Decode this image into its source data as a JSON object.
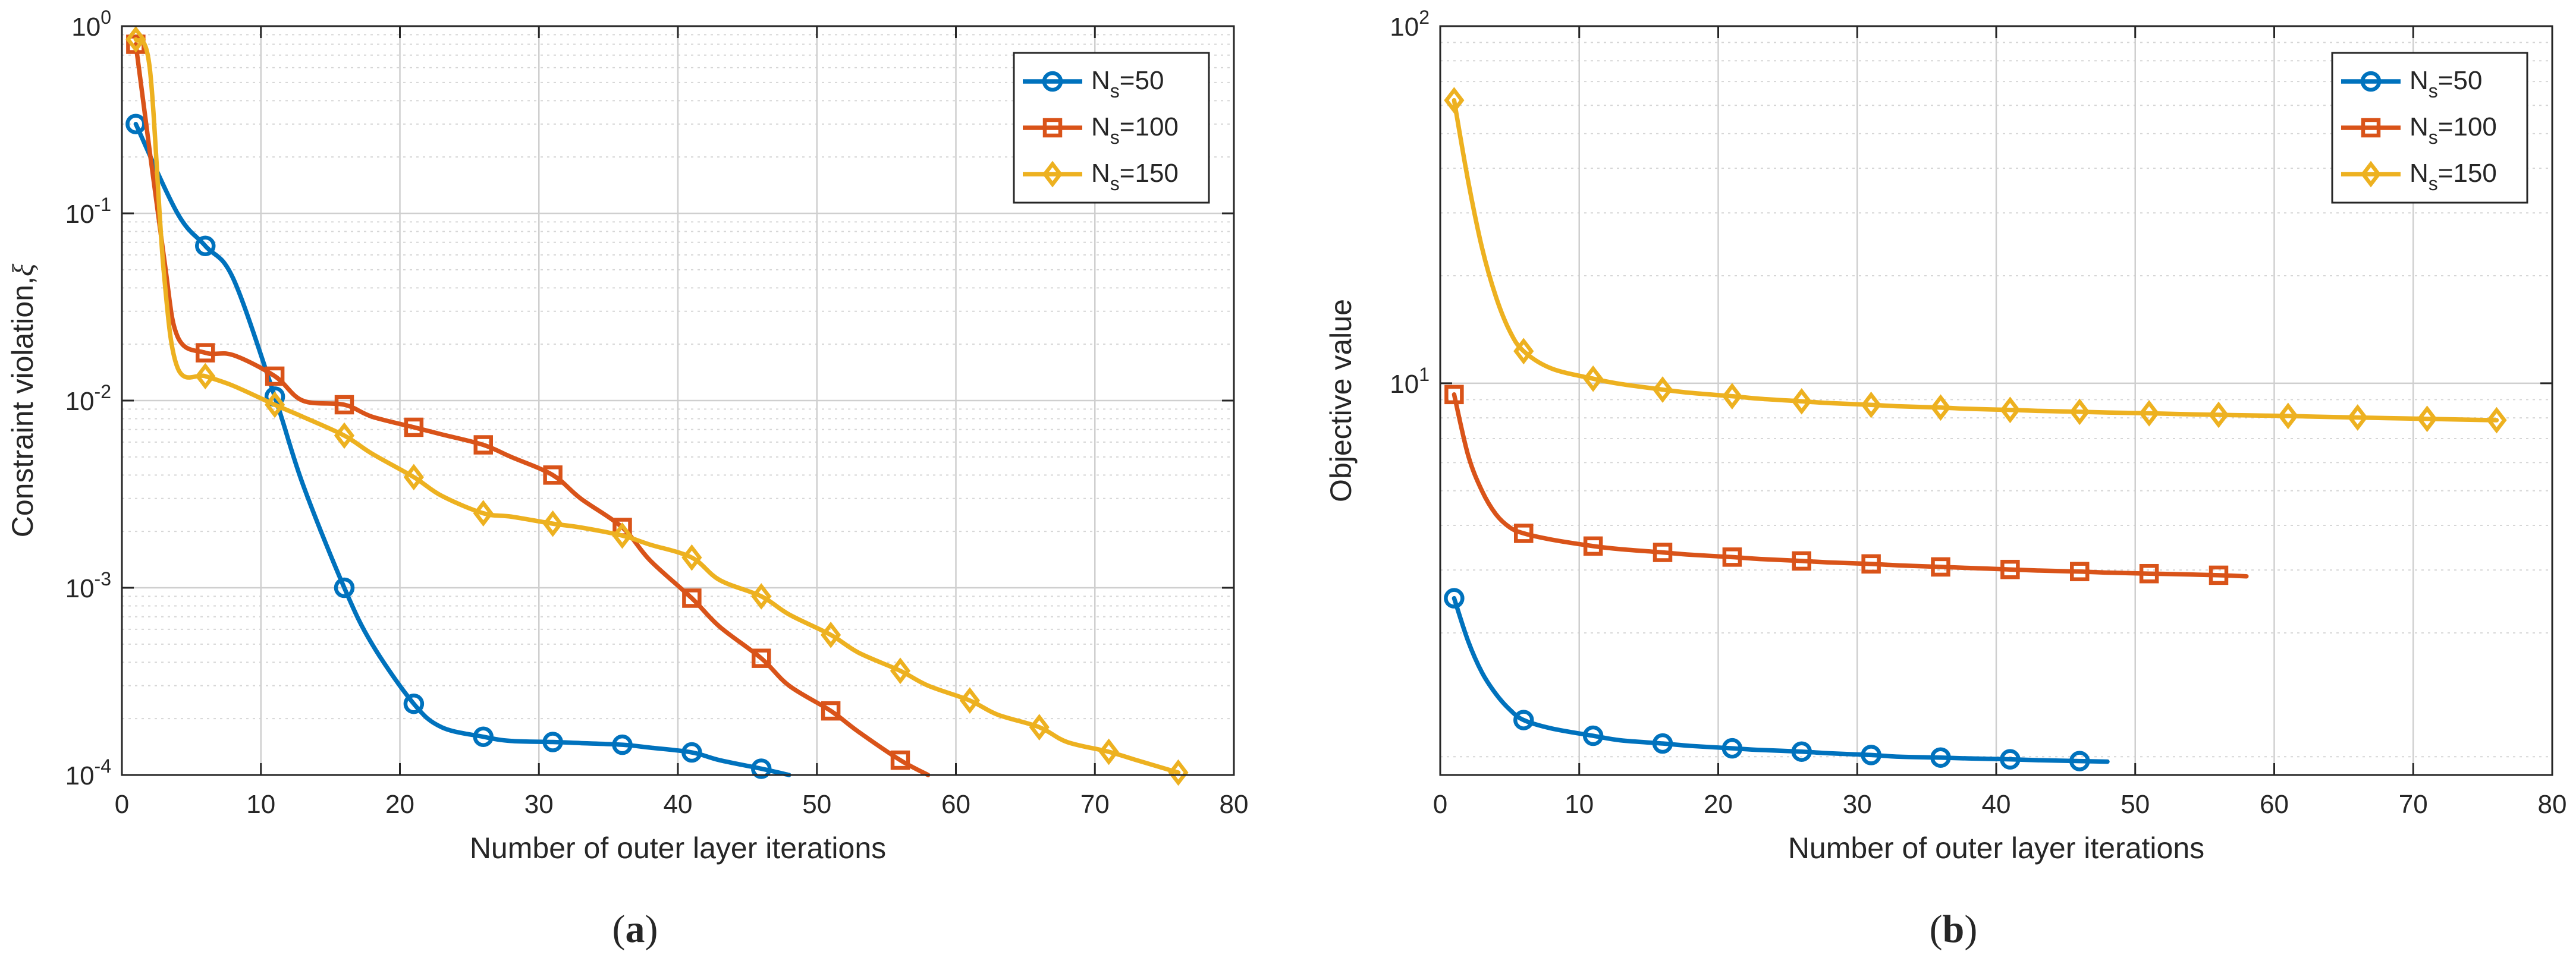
{
  "chart_data": [
    {
      "type": "line",
      "panel_label": "a",
      "xlabel": "Number of outer layer iterations",
      "ylabel": "Constraint violation,",
      "ylabel_symbol": "ξ",
      "yscale": "log",
      "xlim": [
        0,
        80
      ],
      "ylim": [
        0.0001,
        1
      ],
      "grid": true,
      "legend_position": "top-right",
      "x_ticks": [
        0,
        10,
        20,
        30,
        40,
        50,
        60,
        70,
        80
      ],
      "x_tick_labels": [
        "0",
        "10",
        "20",
        "30",
        "40",
        "50",
        "60",
        "70",
        "80"
      ],
      "y_ticks": [
        {
          "value": 0.0001,
          "base": "10",
          "exp": "-4"
        },
        {
          "value": 0.001,
          "base": "10",
          "exp": "-3"
        },
        {
          "value": 0.01,
          "base": "10",
          "exp": "-2"
        },
        {
          "value": 0.1,
          "base": "10",
          "exp": "-1"
        },
        {
          "value": 1,
          "base": "10",
          "exp": "0"
        }
      ],
      "series": [
        {
          "name": "N_s=50",
          "legend_main": "N",
          "legend_sub": "s",
          "legend_rest": "=50",
          "color": "#0072BD",
          "marker": "circle",
          "x": [
            1,
            4,
            6,
            8,
            11,
            13,
            16,
            18,
            21,
            23,
            26,
            28,
            31,
            33,
            36,
            38,
            41,
            43,
            46,
            48
          ],
          "y": [
            0.3,
            0.1,
            0.067,
            0.045,
            0.0105,
            0.0036,
            0.001,
            0.0005,
            0.00024,
            0.00018,
            0.00016,
            0.000152,
            0.00015,
            0.000148,
            0.000145,
            0.00014,
            0.000132,
            0.00012,
            0.000108,
            0.0001
          ],
          "marker_x": [
            1,
            6,
            11,
            16,
            21,
            26,
            31,
            36,
            41,
            46
          ]
        },
        {
          "name": "N_s=100",
          "legend_main": "N",
          "legend_sub": "s",
          "legend_rest": "=100",
          "color": "#D95319",
          "marker": "square",
          "x": [
            1,
            3,
            4,
            6,
            8,
            11,
            13,
            16,
            18,
            21,
            23,
            26,
            28,
            31,
            33,
            36,
            38,
            41,
            43,
            46,
            48,
            51,
            53,
            56,
            58
          ],
          "y": [
            0.8,
            0.06,
            0.022,
            0.018,
            0.0175,
            0.0135,
            0.01,
            0.0095,
            0.0082,
            0.0072,
            0.0066,
            0.0058,
            0.005,
            0.004,
            0.003,
            0.0021,
            0.0014,
            0.00088,
            0.00062,
            0.00042,
            0.0003,
            0.00022,
            0.00017,
            0.00012,
            0.0001
          ],
          "marker_x": [
            1,
            6,
            11,
            16,
            21,
            26,
            31,
            36,
            41,
            46,
            51,
            56
          ]
        },
        {
          "name": "N_s=150",
          "legend_main": "N",
          "legend_sub": "s",
          "legend_rest": "=150",
          "color": "#EDB120",
          "marker": "diamond",
          "x": [
            1,
            2,
            3,
            4,
            6,
            8,
            11,
            13,
            16,
            18,
            21,
            23,
            26,
            28,
            31,
            33,
            36,
            38,
            41,
            43,
            46,
            48,
            51,
            53,
            56,
            58,
            61,
            63,
            66,
            68,
            71,
            73,
            76
          ],
          "y": [
            0.85,
            0.6,
            0.05,
            0.015,
            0.0135,
            0.012,
            0.0095,
            0.0082,
            0.0065,
            0.0052,
            0.0039,
            0.0031,
            0.0025,
            0.0024,
            0.0022,
            0.0021,
            0.0019,
            0.0017,
            0.00145,
            0.0011,
            0.0009,
            0.00072,
            0.00056,
            0.00045,
            0.00036,
            0.0003,
            0.00025,
            0.00021,
            0.00018,
            0.00015,
            0.000133,
            0.00012,
            0.000103
          ],
          "marker_x": [
            1,
            6,
            11,
            16,
            21,
            26,
            31,
            36,
            41,
            46,
            51,
            56,
            61,
            66,
            71,
            76
          ]
        }
      ]
    },
    {
      "type": "line",
      "panel_label": "b",
      "xlabel": "Number of outer layer iterations",
      "ylabel": "Objective value",
      "yscale": "log",
      "xlim": [
        0,
        80
      ],
      "ylim": [
        0.8,
        100
      ],
      "grid": true,
      "legend_position": "top-right",
      "x_ticks": [
        0,
        10,
        20,
        30,
        40,
        50,
        60,
        70,
        80
      ],
      "x_tick_labels": [
        "0",
        "10",
        "20",
        "30",
        "40",
        "50",
        "60",
        "70",
        "80"
      ],
      "y_ticks": [
        {
          "value": 10,
          "base": "10",
          "exp": "1"
        },
        {
          "value": 100,
          "base": "10",
          "exp": "2"
        }
      ],
      "series": [
        {
          "name": "N_s=50",
          "legend_main": "N",
          "legend_sub": "s",
          "legend_rest": "=50",
          "color": "#0072BD",
          "marker": "circle",
          "x": [
            1,
            2,
            3,
            4,
            5,
            6,
            8,
            11,
            13,
            16,
            18,
            21,
            23,
            26,
            28,
            31,
            33,
            36,
            38,
            41,
            43,
            46,
            48
          ],
          "y": [
            2.5,
            1.9,
            1.55,
            1.35,
            1.22,
            1.14,
            1.08,
            1.03,
            1.0,
            0.98,
            0.965,
            0.95,
            0.94,
            0.93,
            0.92,
            0.91,
            0.9,
            0.895,
            0.89,
            0.885,
            0.88,
            0.875,
            0.872
          ],
          "marker_x": [
            1,
            6,
            11,
            16,
            21,
            26,
            31,
            36,
            41,
            46
          ]
        },
        {
          "name": "N_s=100",
          "legend_main": "N",
          "legend_sub": "s",
          "legend_rest": "=100",
          "color": "#D95319",
          "marker": "square",
          "x": [
            1,
            2,
            3,
            4,
            5,
            6,
            8,
            11,
            13,
            16,
            18,
            21,
            23,
            26,
            28,
            31,
            33,
            36,
            38,
            41,
            43,
            46,
            48,
            51,
            53,
            56,
            58
          ],
          "y": [
            9.3,
            6.3,
            5.0,
            4.3,
            3.95,
            3.8,
            3.65,
            3.5,
            3.43,
            3.36,
            3.31,
            3.26,
            3.22,
            3.18,
            3.15,
            3.12,
            3.09,
            3.06,
            3.04,
            3.01,
            2.99,
            2.97,
            2.95,
            2.93,
            2.92,
            2.9,
            2.88
          ],
          "marker_x": [
            1,
            6,
            11,
            16,
            21,
            26,
            31,
            36,
            41,
            46,
            51,
            56
          ]
        },
        {
          "name": "N_s=150",
          "legend_main": "N",
          "legend_sub": "s",
          "legend_rest": "=150",
          "color": "#EDB120",
          "marker": "diamond",
          "x": [
            1,
            2,
            3,
            4,
            5,
            6,
            8,
            11,
            13,
            16,
            18,
            21,
            23,
            26,
            28,
            31,
            33,
            36,
            38,
            41,
            43,
            46,
            48,
            51,
            53,
            56,
            58,
            61,
            63,
            66,
            68,
            71,
            73,
            76
          ],
          "y": [
            62,
            37,
            24,
            17.5,
            14,
            12.3,
            11,
            10.3,
            9.95,
            9.6,
            9.4,
            9.2,
            9.05,
            8.9,
            8.8,
            8.7,
            8.62,
            8.55,
            8.48,
            8.42,
            8.37,
            8.32,
            8.28,
            8.24,
            8.2,
            8.16,
            8.13,
            8.1,
            8.06,
            8.02,
            7.99,
            7.95,
            7.92,
            7.88
          ],
          "marker_x": [
            1,
            6,
            11,
            16,
            21,
            26,
            31,
            36,
            41,
            46,
            51,
            56,
            61,
            66,
            71,
            76
          ]
        }
      ]
    }
  ]
}
